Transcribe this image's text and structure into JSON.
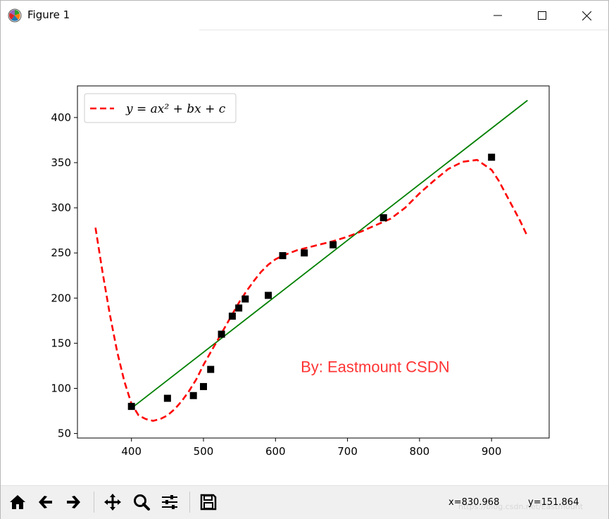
{
  "window": {
    "title": "Figure 1",
    "icon": "matplotlib-logo-icon",
    "controls": [
      "minimize-icon",
      "maximize-icon",
      "close-icon"
    ]
  },
  "chart_data": {
    "type": "scatter",
    "title": "",
    "xlabel": "",
    "ylabel": "",
    "xlim": [
      325,
      980
    ],
    "ylim": [
      45,
      435
    ],
    "xticks": [
      400,
      500,
      600,
      700,
      800,
      900
    ],
    "yticks": [
      50,
      100,
      150,
      200,
      250,
      300,
      350,
      400
    ],
    "grid": false,
    "legend": {
      "placement": "top-left",
      "entries": [
        {
          "label": "y = ax² + bx + c",
          "style": "dashed",
          "color": "#ff0000"
        }
      ]
    },
    "points": {
      "color": "#000000",
      "marker": "square",
      "x": [
        400,
        450,
        486,
        500,
        510,
        525,
        540,
        549,
        558,
        590,
        610,
        640,
        680,
        750,
        900
      ],
      "y": [
        80,
        89,
        92,
        102,
        121,
        160,
        180,
        189,
        199,
        203,
        247,
        250,
        259,
        289,
        356
      ]
    },
    "series": [
      {
        "style": "solid",
        "color": "#008000",
        "x": [
          400,
          950
        ],
        "y": [
          78,
          419
        ]
      },
      {
        "name": "y = ax² + bx + c",
        "style": "dashed",
        "color": "#ff0000",
        "x": [
          350,
          360,
          370,
          380,
          390,
          400,
          410,
          420,
          430,
          440,
          450,
          460,
          470,
          480,
          490,
          500,
          510,
          520,
          530,
          540,
          550,
          560,
          570,
          580,
          590,
          600,
          610,
          620,
          630,
          640,
          660,
          680,
          700,
          720,
          740,
          760,
          780,
          800,
          820,
          840,
          860,
          880,
          900,
          910,
          920,
          930,
          940,
          950
        ],
        "y": [
          278,
          228,
          182,
          141,
          108,
          83,
          70,
          66,
          64,
          66,
          70,
          77,
          86,
          97,
          110,
          126,
          140,
          154,
          168,
          182,
          196,
          208,
          219,
          229,
          237,
          243,
          247,
          250,
          253,
          255,
          259,
          263,
          268,
          274,
          281,
          288,
          300,
          316,
          330,
          343,
          351,
          353,
          342,
          330,
          315,
          300,
          285,
          268
        ]
      }
    ],
    "annotation": {
      "text": "By:  Eastmount CSDN",
      "color": "#ff3333",
      "x": 635,
      "y": 118
    }
  },
  "toolbar": {
    "buttons": [
      {
        "name": "home-button",
        "icon": "home-icon"
      },
      {
        "name": "back-button",
        "icon": "arrow-left-icon"
      },
      {
        "name": "forward-button",
        "icon": "arrow-right-icon"
      },
      {
        "name": "pan-button",
        "icon": "move-icon"
      },
      {
        "name": "zoom-button",
        "icon": "magnifier-icon"
      },
      {
        "name": "configure-subplots-button",
        "icon": "sliders-icon"
      },
      {
        "name": "save-button",
        "icon": "floppy-disk-icon"
      }
    ],
    "coord_x": "x=830.968",
    "coord_y": "y=151.864",
    "watermark": "https://blog.csdn.net/Eastmount"
  }
}
